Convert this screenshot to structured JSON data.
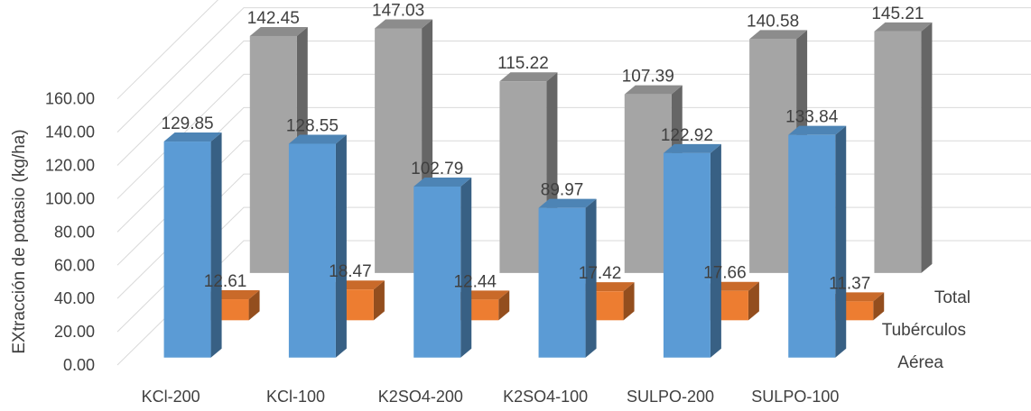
{
  "chart_data": {
    "type": "bar",
    "subtype": "3d-column",
    "ylabel": "EXtracción de potasio (kg/ha)",
    "ylim": [
      0,
      160
    ],
    "ytick_step": 20,
    "ytick_labels": [
      "0.00",
      "20.00",
      "40.00",
      "60.00",
      "80.00",
      "100.00",
      "120.00",
      "140.00",
      "160.00"
    ],
    "categories": [
      "KCl-200",
      "KCl-100",
      "K2SO4-200",
      "K2SO4-100",
      "SULPO-200",
      "SULPO-100"
    ],
    "series": [
      {
        "name": "Aérea",
        "values": [
          129.85,
          128.55,
          102.79,
          89.97,
          122.92,
          133.84
        ],
        "labels": [
          "129.85",
          "128.55",
          "102.79",
          "89.97",
          "122.92",
          "133.84"
        ],
        "color": "#5B9BD5"
      },
      {
        "name": "Tubérculos",
        "values": [
          12.61,
          18.47,
          12.44,
          17.42,
          17.66,
          11.37
        ],
        "labels": [
          "12.61",
          "18.47",
          "12.44",
          "17.42",
          "17.66",
          "11.37"
        ],
        "color": "#ED7D31"
      },
      {
        "name": "Total",
        "values": [
          142.45,
          147.03,
          115.22,
          107.39,
          140.58,
          145.21
        ],
        "labels": [
          "142.45",
          "147.03",
          "115.22",
          "107.39",
          "140.58",
          "145.21"
        ],
        "color": "#A5A5A5"
      }
    ],
    "grid": true,
    "legend": "series-axis-right"
  }
}
